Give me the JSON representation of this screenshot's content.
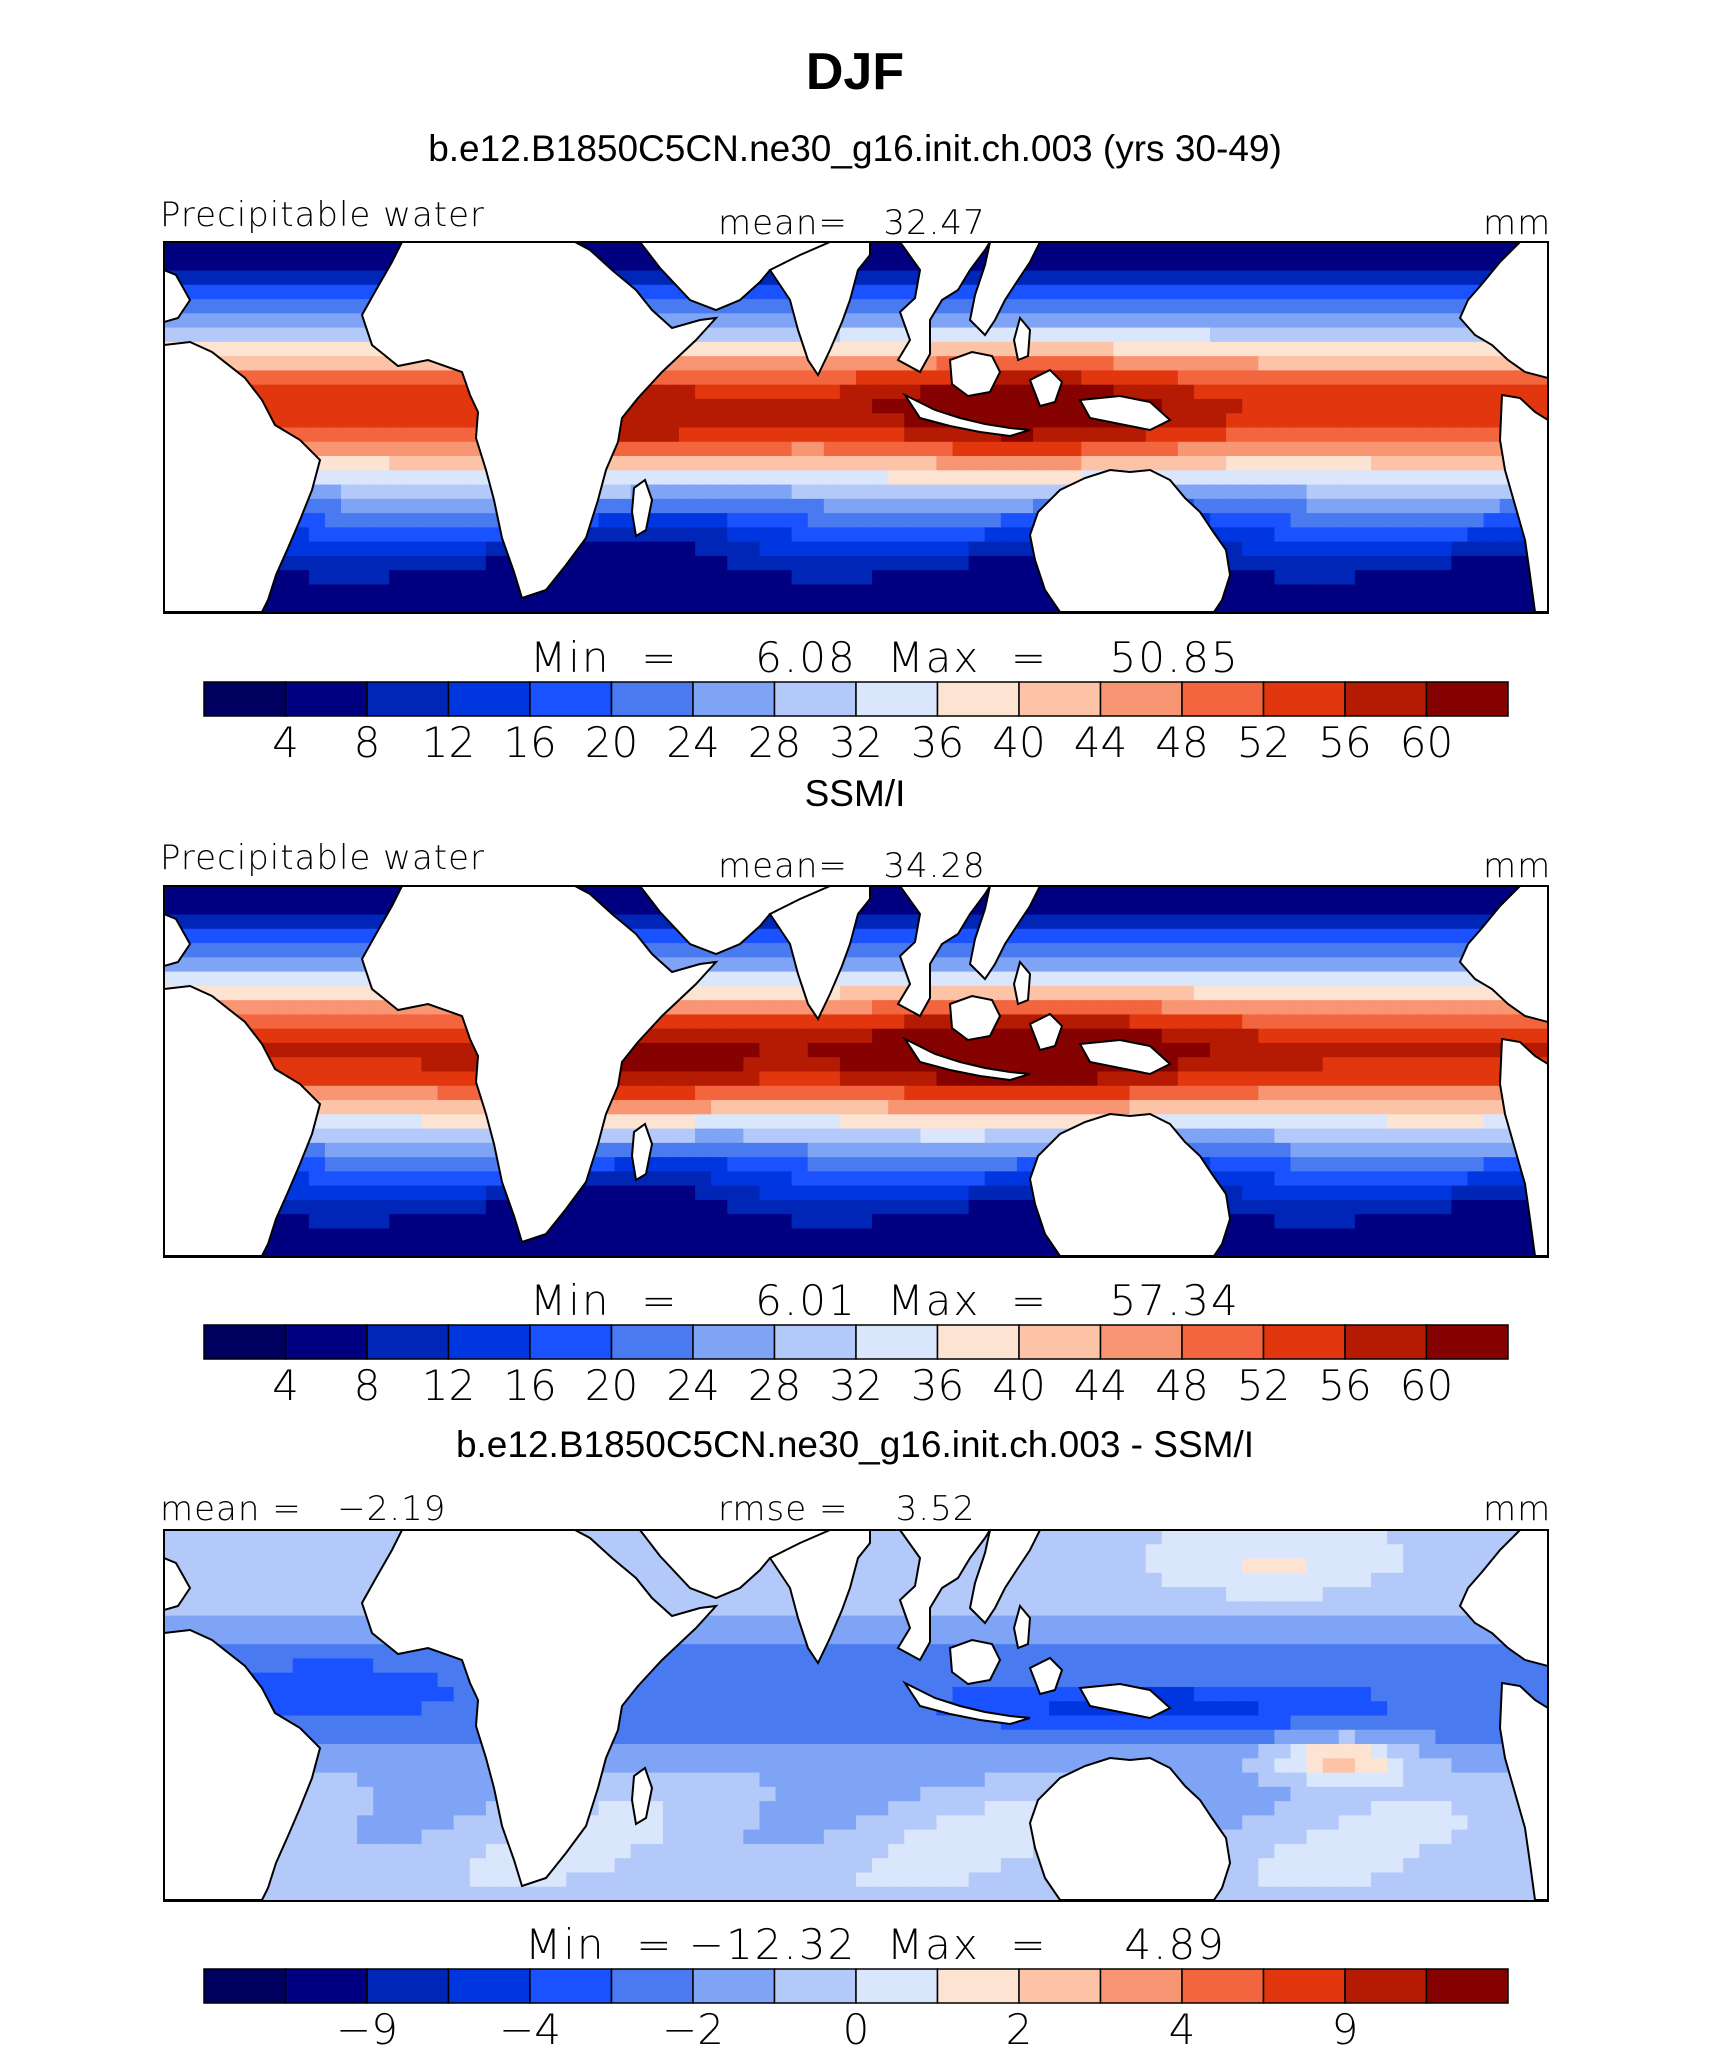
{
  "title": "DJF",
  "colors": [
    "#000080",
    "#0026b8",
    "#0036e0",
    "#1a52ff",
    "#4a7af0",
    "#7fa4f5",
    "#b3c9fa",
    "#d9e6fc",
    "#fde3d2",
    "#fcc3a6",
    "#f89572",
    "#f2653f",
    "#e1360e",
    "#b51a02",
    "#860200"
  ],
  "land_color": "#ffffff",
  "panels": [
    {
      "subtitle": "b.e12.B1850C5CN.ne30_g16.init.ch.003 (yrs 30-49)",
      "left_label": "Precipitable water",
      "center_label": "mean=   32.47",
      "right_label": "mm",
      "minmax": "Min  =     6.08  Max  =    50.85",
      "ticks": [
        "4",
        "8",
        "12",
        "16",
        "20",
        "24",
        "28",
        "32",
        "36",
        "40",
        "44",
        "48",
        "52",
        "56",
        "60"
      ],
      "field": "model"
    },
    {
      "subtitle": "SSM/I",
      "left_label": "Precipitable water",
      "center_label": "mean=   34.28",
      "right_label": "mm",
      "minmax": "Min  =     6.01  Max  =    57.34",
      "ticks": [
        "4",
        "8",
        "12",
        "16",
        "20",
        "24",
        "28",
        "32",
        "36",
        "40",
        "44",
        "48",
        "52",
        "56",
        "60"
      ],
      "field": "obs"
    },
    {
      "subtitle": "b.e12.B1850C5CN.ne30_g16.init.ch.003 - SSM/I",
      "left_label": "mean =   −2.19",
      "center_label": "rmse =    3.52",
      "right_label": "mm",
      "minmax": "Min  = −12.32  Max  =     4.89",
      "ticks": [
        "−9",
        "−4",
        "−2",
        "0",
        "2",
        "4",
        "9"
      ],
      "field": "diff"
    }
  ]
}
